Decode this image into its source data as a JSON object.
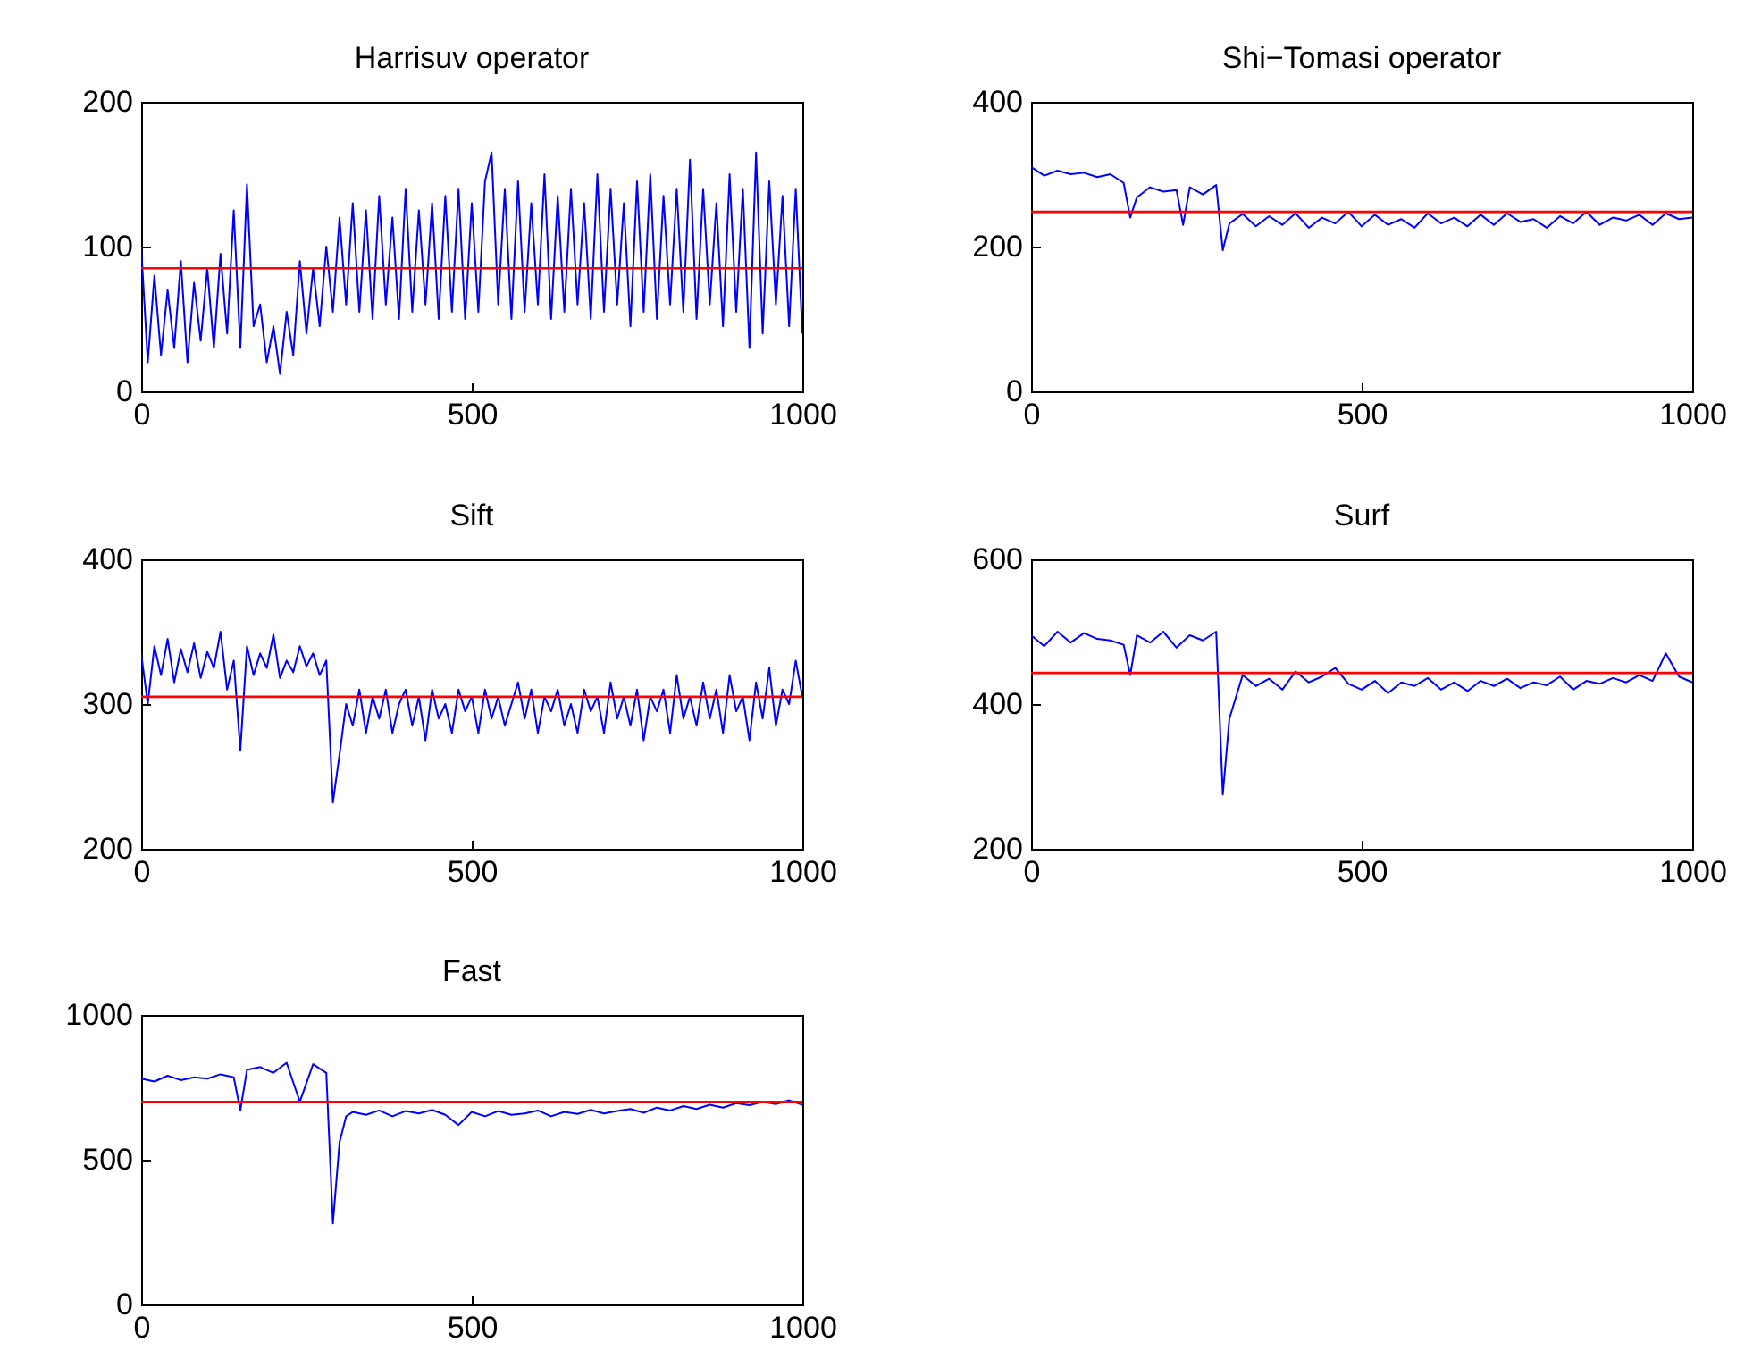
{
  "chart_data": [
    {
      "type": "line",
      "title": "Harrisuv operator",
      "xlim": [
        0,
        1000
      ],
      "xticks": [
        0,
        500,
        1000
      ],
      "ylim": [
        0,
        200
      ],
      "yticks": [
        0,
        100,
        200
      ],
      "grid": false,
      "legend": false,
      "series": [
        {
          "color": "#0000ff",
          "x": [
            0,
            10,
            20,
            30,
            40,
            50,
            60,
            70,
            80,
            90,
            100,
            110,
            120,
            130,
            140,
            150,
            160,
            170,
            180,
            190,
            200,
            210,
            220,
            230,
            240,
            250,
            260,
            270,
            280,
            290,
            300,
            310,
            320,
            330,
            340,
            350,
            360,
            370,
            380,
            390,
            400,
            410,
            420,
            430,
            440,
            450,
            460,
            470,
            480,
            490,
            500,
            510,
            520,
            530,
            540,
            550,
            560,
            570,
            580,
            590,
            600,
            610,
            620,
            630,
            640,
            650,
            660,
            670,
            680,
            690,
            700,
            710,
            720,
            730,
            740,
            750,
            760,
            770,
            780,
            790,
            800,
            810,
            820,
            830,
            840,
            850,
            860,
            870,
            880,
            890,
            900,
            910,
            920,
            930,
            940,
            950,
            960,
            970,
            980,
            990,
            1000
          ],
          "values": [
            100,
            20,
            80,
            25,
            70,
            30,
            90,
            20,
            75,
            35,
            85,
            30,
            95,
            40,
            125,
            30,
            143,
            45,
            60,
            20,
            45,
            12,
            55,
            25,
            90,
            40,
            85,
            45,
            100,
            55,
            120,
            60,
            130,
            55,
            125,
            50,
            135,
            60,
            120,
            50,
            140,
            55,
            125,
            60,
            130,
            50,
            135,
            55,
            140,
            50,
            130,
            55,
            145,
            165,
            60,
            140,
            50,
            145,
            55,
            130,
            60,
            150,
            50,
            135,
            55,
            140,
            60,
            130,
            50,
            150,
            55,
            140,
            60,
            130,
            45,
            145,
            55,
            150,
            50,
            135,
            60,
            140,
            55,
            160,
            50,
            140,
            60,
            130,
            45,
            150,
            55,
            140,
            30,
            165,
            40,
            145,
            60,
            135,
            45,
            140,
            40
          ]
        }
      ],
      "ref_lines": [
        {
          "axis": "y",
          "value": 85,
          "color": "#ff0000"
        }
      ]
    },
    {
      "type": "line",
      "title": "Shi−Tomasi operator",
      "xlim": [
        0,
        1000
      ],
      "xticks": [
        0,
        500,
        1000
      ],
      "ylim": [
        0,
        400
      ],
      "yticks": [
        0,
        200,
        400
      ],
      "grid": false,
      "legend": false,
      "series": [
        {
          "color": "#0000ff",
          "x": [
            0,
            20,
            40,
            60,
            80,
            100,
            120,
            140,
            150,
            160,
            180,
            200,
            220,
            230,
            240,
            260,
            280,
            290,
            300,
            320,
            340,
            360,
            380,
            400,
            420,
            440,
            460,
            480,
            500,
            520,
            540,
            560,
            580,
            600,
            620,
            640,
            660,
            680,
            700,
            720,
            740,
            760,
            780,
            800,
            820,
            840,
            860,
            880,
            900,
            920,
            940,
            960,
            980,
            1000
          ],
          "values": [
            310,
            298,
            305,
            300,
            302,
            296,
            300,
            288,
            240,
            268,
            282,
            276,
            278,
            230,
            282,
            272,
            285,
            195,
            232,
            245,
            228,
            242,
            230,
            246,
            226,
            240,
            232,
            248,
            228,
            244,
            230,
            238,
            226,
            246,
            232,
            240,
            228,
            244,
            230,
            246,
            234,
            238,
            226,
            242,
            232,
            248,
            230,
            240,
            236,
            244,
            230,
            246,
            238,
            240
          ]
        }
      ],
      "ref_lines": [
        {
          "axis": "y",
          "value": 248,
          "color": "#ff0000"
        }
      ]
    },
    {
      "type": "line",
      "title": "Sift",
      "xlim": [
        0,
        1000
      ],
      "xticks": [
        0,
        500,
        1000
      ],
      "ylim": [
        200,
        400
      ],
      "yticks": [
        200,
        300,
        400
      ],
      "grid": false,
      "legend": false,
      "series": [
        {
          "color": "#0000ff",
          "x": [
            0,
            10,
            20,
            30,
            40,
            50,
            60,
            70,
            80,
            90,
            100,
            110,
            120,
            130,
            140,
            150,
            160,
            170,
            180,
            190,
            200,
            210,
            220,
            230,
            240,
            250,
            260,
            270,
            280,
            290,
            300,
            310,
            320,
            330,
            340,
            350,
            360,
            370,
            380,
            390,
            400,
            410,
            420,
            430,
            440,
            450,
            460,
            470,
            480,
            490,
            500,
            510,
            520,
            530,
            540,
            550,
            560,
            570,
            580,
            590,
            600,
            610,
            620,
            630,
            640,
            650,
            660,
            670,
            680,
            690,
            700,
            710,
            720,
            730,
            740,
            750,
            760,
            770,
            780,
            790,
            800,
            810,
            820,
            830,
            840,
            850,
            860,
            870,
            880,
            890,
            900,
            910,
            920,
            930,
            940,
            950,
            960,
            970,
            980,
            990,
            1000
          ],
          "values": [
            335,
            300,
            340,
            320,
            345,
            315,
            338,
            322,
            342,
            318,
            336,
            325,
            350,
            310,
            330,
            268,
            340,
            320,
            335,
            325,
            348,
            318,
            330,
            322,
            340,
            326,
            335,
            320,
            330,
            232,
            265,
            300,
            285,
            310,
            280,
            305,
            290,
            310,
            280,
            300,
            310,
            285,
            305,
            275,
            310,
            290,
            300,
            280,
            310,
            295,
            305,
            280,
            310,
            290,
            305,
            285,
            300,
            315,
            290,
            310,
            280,
            305,
            295,
            310,
            285,
            300,
            280,
            310,
            295,
            305,
            280,
            315,
            290,
            305,
            285,
            310,
            275,
            305,
            295,
            310,
            280,
            320,
            290,
            305,
            285,
            315,
            290,
            310,
            280,
            320,
            295,
            305,
            275,
            315,
            290,
            325,
            285,
            310,
            300,
            330,
            305
          ]
        }
      ],
      "ref_lines": [
        {
          "axis": "y",
          "value": 305,
          "color": "#ff0000"
        }
      ]
    },
    {
      "type": "line",
      "title": "Surf",
      "xlim": [
        0,
        1000
      ],
      "xticks": [
        0,
        500,
        1000
      ],
      "ylim": [
        200,
        600
      ],
      "yticks": [
        200,
        400,
        600
      ],
      "grid": false,
      "legend": false,
      "series": [
        {
          "color": "#0000ff",
          "x": [
            0,
            20,
            40,
            60,
            80,
            100,
            120,
            140,
            150,
            160,
            180,
            200,
            220,
            240,
            260,
            280,
            290,
            300,
            320,
            340,
            360,
            380,
            400,
            420,
            440,
            460,
            480,
            500,
            520,
            540,
            560,
            580,
            600,
            620,
            640,
            660,
            680,
            700,
            720,
            740,
            760,
            780,
            800,
            820,
            840,
            860,
            880,
            900,
            920,
            940,
            960,
            980,
            1000
          ],
          "values": [
            495,
            480,
            500,
            485,
            498,
            490,
            488,
            482,
            440,
            495,
            485,
            500,
            478,
            495,
            488,
            500,
            275,
            380,
            440,
            425,
            435,
            420,
            445,
            430,
            438,
            450,
            428,
            420,
            432,
            415,
            430,
            425,
            436,
            420,
            430,
            418,
            432,
            425,
            435,
            422,
            430,
            426,
            438,
            420,
            432,
            428,
            436,
            430,
            440,
            432,
            470,
            438,
            430
          ]
        }
      ],
      "ref_lines": [
        {
          "axis": "y",
          "value": 443,
          "color": "#ff0000"
        }
      ]
    },
    {
      "type": "line",
      "title": "Fast",
      "xlim": [
        0,
        1000
      ],
      "xticks": [
        0,
        500,
        1000
      ],
      "ylim": [
        0,
        1000
      ],
      "yticks": [
        0,
        500,
        1000
      ],
      "grid": false,
      "legend": false,
      "series": [
        {
          "color": "#0000ff",
          "x": [
            0,
            20,
            40,
            60,
            80,
            100,
            120,
            140,
            150,
            160,
            180,
            200,
            220,
            240,
            260,
            280,
            290,
            300,
            310,
            320,
            340,
            360,
            380,
            400,
            420,
            440,
            460,
            480,
            500,
            520,
            540,
            560,
            580,
            600,
            620,
            640,
            660,
            680,
            700,
            720,
            740,
            760,
            780,
            800,
            820,
            840,
            860,
            880,
            900,
            920,
            940,
            960,
            980,
            1000
          ],
          "values": [
            780,
            770,
            790,
            775,
            785,
            780,
            795,
            785,
            670,
            810,
            820,
            800,
            835,
            700,
            830,
            800,
            280,
            560,
            650,
            665,
            655,
            670,
            650,
            668,
            660,
            672,
            655,
            620,
            665,
            650,
            668,
            655,
            660,
            670,
            650,
            665,
            658,
            672,
            660,
            668,
            675,
            662,
            680,
            670,
            685,
            675,
            690,
            680,
            695,
            688,
            700,
            692,
            705,
            690
          ]
        }
      ],
      "ref_lines": [
        {
          "axis": "y",
          "value": 700,
          "color": "#ff0000"
        }
      ]
    }
  ]
}
